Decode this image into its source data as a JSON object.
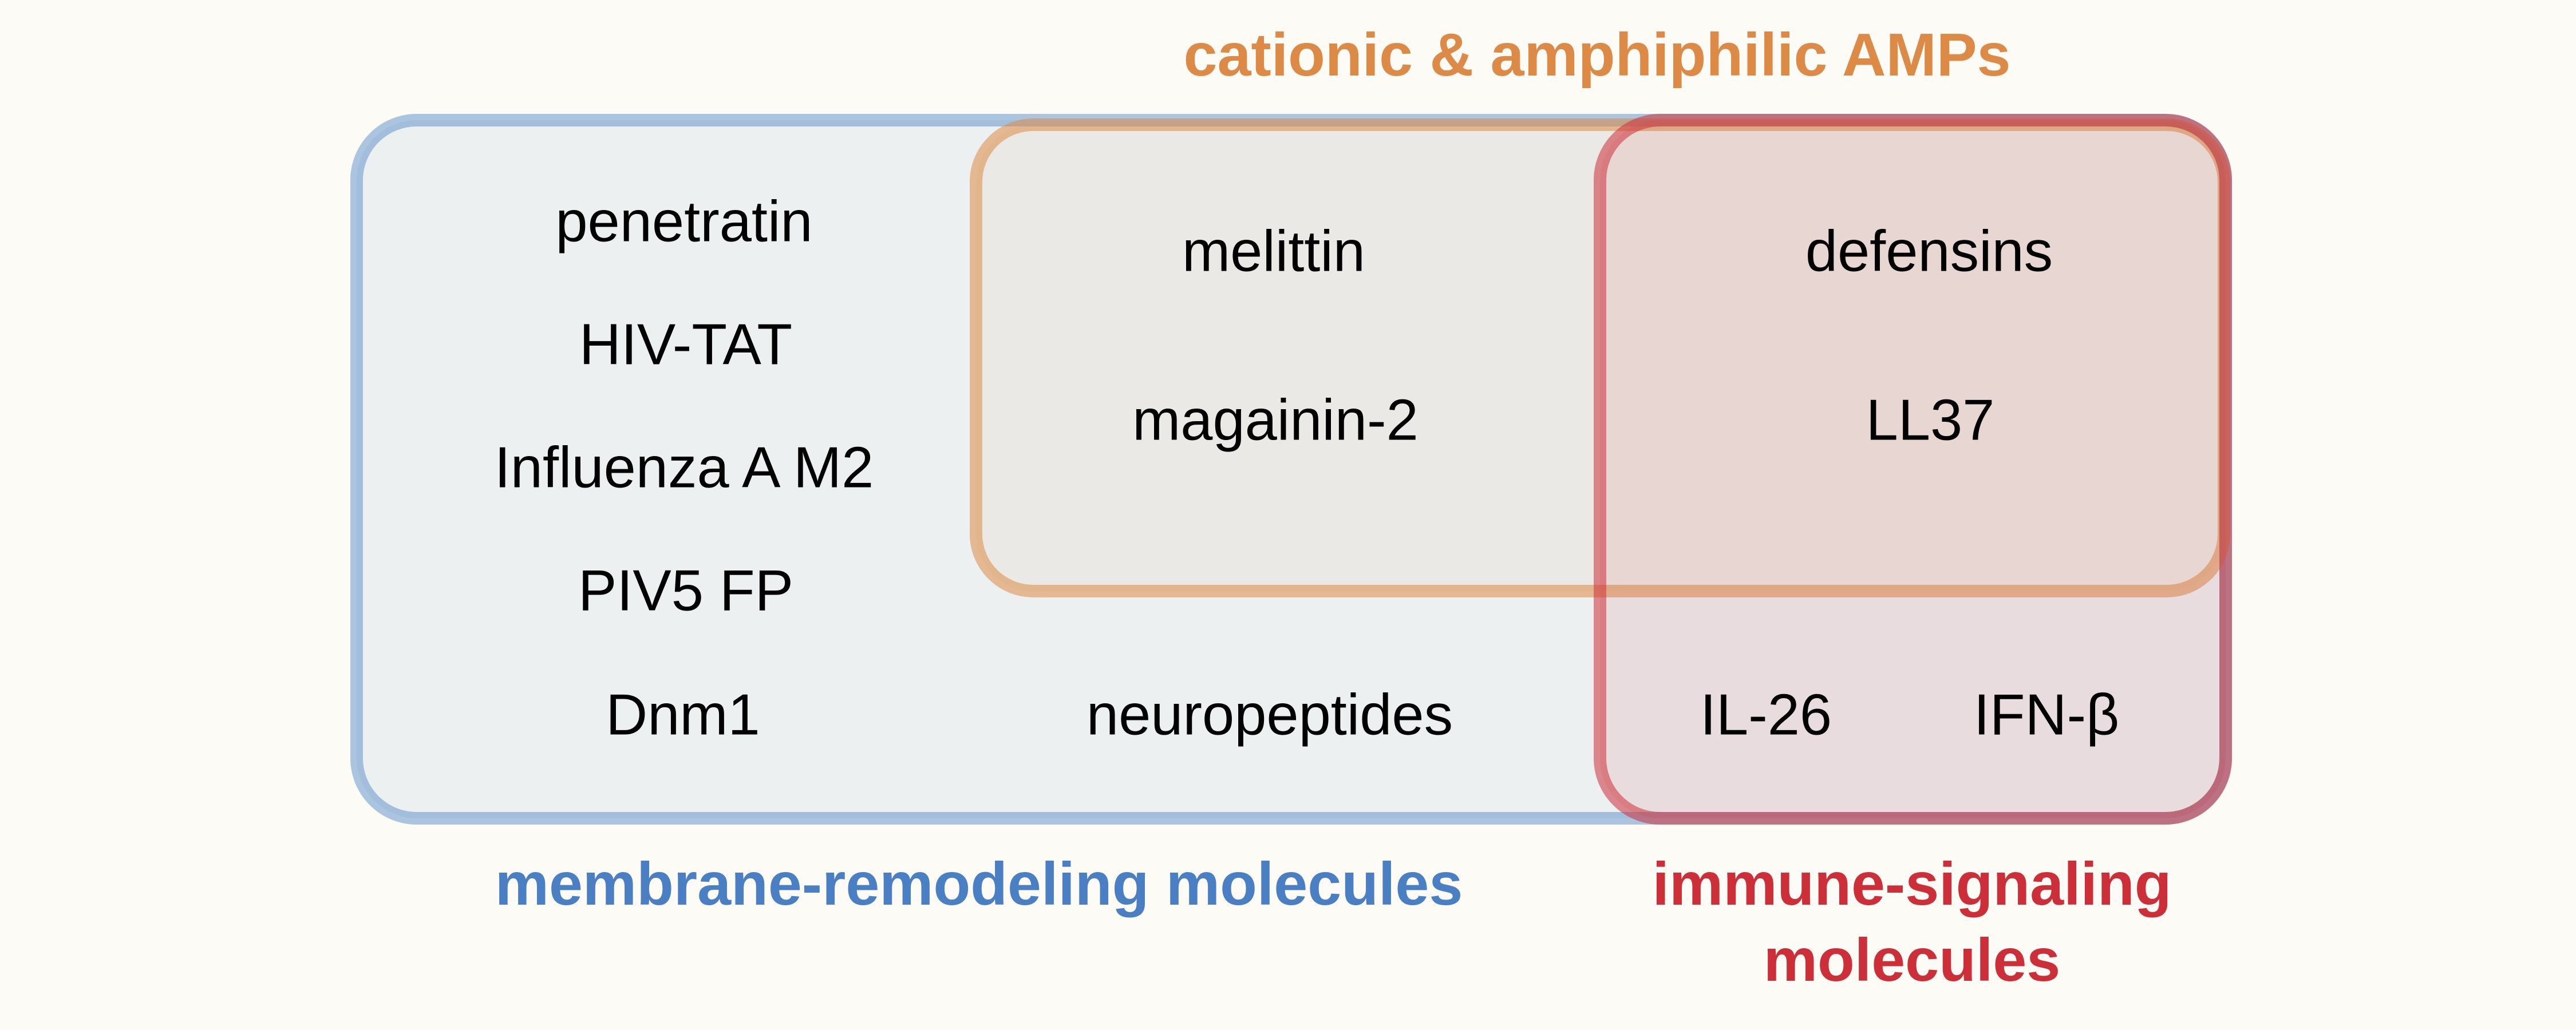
{
  "colors": {
    "background": "#fcfbf6",
    "membrane_remodeling": "#4a80c3",
    "cationic_amphiphilic": "#dd8a46",
    "immune_signaling": "#cc2f38"
  },
  "sets": {
    "membrane_remodeling": {
      "title": "membrane-remodeling molecules",
      "only_members": [
        "penetratin",
        "HIV-TAT",
        "Influenza A M2",
        "PIV5 FP",
        "Dnm1"
      ],
      "neuro": "neuropeptides"
    },
    "cationic_amphiphilic": {
      "title": "cationic & amphiphilic AMPs",
      "with_membrane": [
        "melittin",
        "magainin-2"
      ]
    },
    "immune_signaling": {
      "title_line1": "immune-signaling",
      "title_line2": "molecules",
      "all_three": [
        "defensins",
        "LL37"
      ],
      "with_membrane": [
        "IL-26",
        "IFN-β"
      ]
    }
  }
}
